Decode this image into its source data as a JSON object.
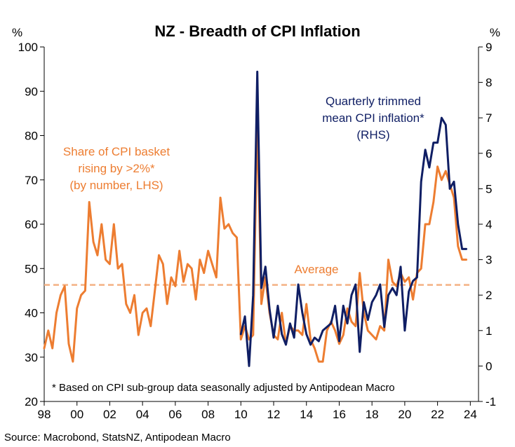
{
  "chart_data": {
    "type": "line",
    "title": "NZ - Breadth of CPI Inflation",
    "left_axis_unit": "%",
    "right_axis_unit": "%",
    "left_ylim": [
      20,
      100
    ],
    "left_ticks": [
      "100",
      "90",
      "80",
      "70",
      "60",
      "50",
      "40",
      "30",
      "20"
    ],
    "right_ylim": [
      -1,
      9
    ],
    "right_ticks": [
      "9",
      "8",
      "7",
      "6",
      "5",
      "4",
      "3",
      "2",
      "1",
      "0",
      "-1"
    ],
    "x_ticks": [
      "98",
      "00",
      "02",
      "04",
      "06",
      "08",
      "10",
      "12",
      "14",
      "16",
      "18",
      "20",
      "22",
      "24"
    ],
    "xlim": [
      1998.0,
      2024.5
    ],
    "colors": {
      "share": "#ED7D31",
      "trimmed": "#0F1E64",
      "average": "#F4B183"
    },
    "average": {
      "label": "Average",
      "value": 46.3
    },
    "annotations": {
      "share": [
        "Share of CPI basket",
        "rising by >2%*",
        "(by number, LHS)"
      ],
      "trimmed": [
        "Quarterly trimmed",
        "mean CPI inflation*",
        "(RHS)"
      ]
    },
    "footnote": "* Based on CPI sub-group data seasonally adjusted by Antipodean Macro",
    "source": "Source: Macrobond, StatsNZ, Antipodean Macro",
    "series": [
      {
        "name": "Share of CPI basket rising by >2% (by number, LHS)",
        "axis": "left",
        "x": [
          1998.0,
          1998.25,
          1998.5,
          1998.75,
          1999.0,
          1999.25,
          1999.5,
          1999.75,
          2000.0,
          2000.25,
          2000.5,
          2000.75,
          2001.0,
          2001.25,
          2001.5,
          2001.75,
          2002.0,
          2002.25,
          2002.5,
          2002.75,
          2003.0,
          2003.25,
          2003.5,
          2003.75,
          2004.0,
          2004.25,
          2004.5,
          2004.75,
          2005.0,
          2005.25,
          2005.5,
          2005.75,
          2006.0,
          2006.25,
          2006.5,
          2006.75,
          2007.0,
          2007.25,
          2007.5,
          2007.75,
          2008.0,
          2008.25,
          2008.5,
          2008.75,
          2009.0,
          2009.25,
          2009.5,
          2009.75,
          2010.0,
          2010.25,
          2010.5,
          2010.75,
          2011.0,
          2011.25,
          2011.5,
          2011.75,
          2012.0,
          2012.25,
          2012.5,
          2012.75,
          2013.0,
          2013.25,
          2013.5,
          2013.75,
          2014.0,
          2014.25,
          2014.5,
          2014.75,
          2015.0,
          2015.25,
          2015.5,
          2015.75,
          2016.0,
          2016.25,
          2016.5,
          2016.75,
          2017.0,
          2017.25,
          2017.5,
          2017.75,
          2018.0,
          2018.25,
          2018.5,
          2018.75,
          2019.0,
          2019.25,
          2019.5,
          2019.75,
          2020.0,
          2020.25,
          2020.5,
          2020.75,
          2021.0,
          2021.25,
          2021.5,
          2021.75,
          2022.0,
          2022.25,
          2022.5,
          2022.75,
          2023.0,
          2023.25,
          2023.5,
          2023.75
        ],
        "values": [
          32,
          36,
          32,
          40,
          44,
          46,
          33,
          29,
          41,
          44,
          45,
          65,
          56,
          53,
          60,
          52,
          51,
          60,
          50,
          51,
          42,
          40,
          44,
          35,
          40,
          41,
          37,
          45,
          53,
          51,
          42,
          48,
          46,
          54,
          47,
          51,
          50,
          43,
          52,
          49,
          54,
          51,
          48,
          66,
          59,
          60,
          58,
          57,
          34,
          37,
          34,
          35,
          84,
          42,
          48,
          40,
          35,
          34,
          40,
          33,
          37,
          36,
          36,
          35,
          42,
          34,
          32,
          29,
          29,
          36,
          38,
          36,
          33,
          35,
          41,
          38,
          37,
          49,
          40,
          36,
          35,
          34,
          37,
          36,
          52,
          47,
          46,
          49,
          47,
          48,
          43,
          49,
          50,
          60,
          60,
          65,
          73,
          70,
          72,
          69,
          66,
          55,
          52,
          52
        ],
        "color": "#ED7D31"
      },
      {
        "name": "Quarterly trimmed mean CPI inflation (RHS)",
        "axis": "right",
        "x": [
          2010.0,
          2010.25,
          2010.5,
          2010.75,
          2011.0,
          2011.25,
          2011.5,
          2011.75,
          2012.0,
          2012.25,
          2012.5,
          2012.75,
          2013.0,
          2013.25,
          2013.5,
          2013.75,
          2014.0,
          2014.25,
          2014.5,
          2014.75,
          2015.0,
          2015.25,
          2015.5,
          2015.75,
          2016.0,
          2016.25,
          2016.5,
          2016.75,
          2017.0,
          2017.25,
          2017.5,
          2017.75,
          2018.0,
          2018.25,
          2018.5,
          2018.75,
          2019.0,
          2019.25,
          2019.5,
          2019.75,
          2020.0,
          2020.25,
          2020.5,
          2020.75,
          2021.0,
          2021.25,
          2021.5,
          2021.75,
          2022.0,
          2022.25,
          2022.5,
          2022.75,
          2023.0,
          2023.25,
          2023.5,
          2023.75
        ],
        "values": [
          0.9,
          1.4,
          0.0,
          2.0,
          8.3,
          2.2,
          2.8,
          1.6,
          0.8,
          1.7,
          0.9,
          0.6,
          1.2,
          0.8,
          2.3,
          1.5,
          0.9,
          0.6,
          0.8,
          0.7,
          1.0,
          1.1,
          1.2,
          1.7,
          0.7,
          1.7,
          1.2,
          2.0,
          2.3,
          0.4,
          1.8,
          1.3,
          1.8,
          2.0,
          2.3,
          1.1,
          2.0,
          2.2,
          2.0,
          2.8,
          1.0,
          2.1,
          2.4,
          2.5,
          5.2,
          6.1,
          5.6,
          6.3,
          6.3,
          7.0,
          6.8,
          5.0,
          5.2,
          4.0,
          3.3,
          3.3
        ],
        "color": "#0F1E64"
      }
    ]
  }
}
